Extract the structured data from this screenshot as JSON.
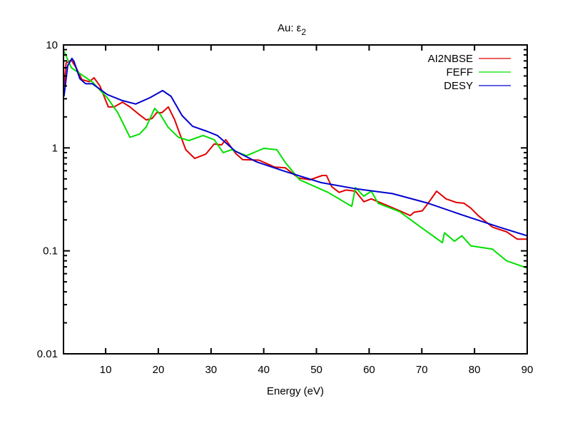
{
  "chart_data": {
    "type": "line",
    "title": "Au: ε",
    "title_subscript": "2",
    "xlabel": "Energy (eV)",
    "ylabel": "",
    "xlim": [
      2,
      90
    ],
    "ylim": [
      0.01,
      10
    ],
    "yscale": "log",
    "grid": false,
    "legend_position": "top-right",
    "xticks": [
      10,
      20,
      30,
      40,
      50,
      60,
      70,
      80,
      90
    ],
    "xtick_labels": [
      "10",
      "20",
      "30",
      "40",
      "50",
      "60",
      "70",
      "80",
      "90"
    ],
    "yticks": [
      0.01,
      0.1,
      1,
      10
    ],
    "ytick_labels": [
      "0.01",
      "0.1",
      "1",
      "10"
    ],
    "series": [
      {
        "name": "AI2NBSE",
        "color": "#e00000",
        "x": [
          2.1,
          2.5,
          3.5,
          4.4,
          5.5,
          6.9,
          7.8,
          8.9,
          10.5,
          11.6,
          13.2,
          14.6,
          16.4,
          17.7,
          18.8,
          19.7,
          20.7,
          21.9,
          23.1,
          24.1,
          25.2,
          26.9,
          29.0,
          30.6,
          32.0,
          32.8,
          34.7,
          36.0,
          39.1,
          42.1,
          44.1,
          46.6,
          48.8,
          51.1,
          51.9,
          52.9,
          54.3,
          55.6,
          57.4,
          59.0,
          60.4,
          63.1,
          65.8,
          67.8,
          68.5,
          70.1,
          71.2,
          72.8,
          74.6,
          76.6,
          78.0,
          79.3,
          80.7,
          83.4,
          86.1,
          88.1,
          90.0
        ],
        "y": [
          4.0,
          6.7,
          7.1,
          6.0,
          4.6,
          4.4,
          4.8,
          4.0,
          2.5,
          2.5,
          2.78,
          2.5,
          2.1,
          1.87,
          1.93,
          2.2,
          2.2,
          2.5,
          1.87,
          1.36,
          0.96,
          0.79,
          0.87,
          1.09,
          1.07,
          1.2,
          0.88,
          0.77,
          0.76,
          0.65,
          0.64,
          0.51,
          0.49,
          0.54,
          0.54,
          0.42,
          0.37,
          0.39,
          0.38,
          0.3,
          0.32,
          0.28,
          0.245,
          0.22,
          0.237,
          0.245,
          0.29,
          0.38,
          0.32,
          0.295,
          0.29,
          0.26,
          0.22,
          0.17,
          0.153,
          0.13,
          0.13
        ]
      },
      {
        "name": "FEFF",
        "color": "#00e000",
        "x": [
          2.1,
          3.5,
          4.8,
          7.5,
          10.3,
          12.3,
          14.6,
          16.4,
          17.7,
          19.3,
          20.4,
          21.8,
          23.8,
          25.8,
          28.5,
          30.6,
          32.3,
          33.9,
          36.7,
          40.0,
          42.5,
          44.1,
          46.8,
          52.2,
          56.7,
          57.4,
          59.0,
          60.4,
          61.7,
          65.8,
          69.8,
          73.9,
          74.3,
          76.2,
          77.6,
          79.3,
          83.4,
          84.3,
          86.1,
          90.0
        ],
        "y": [
          8.66,
          6.0,
          5.4,
          4.36,
          3.07,
          2.2,
          1.27,
          1.36,
          1.6,
          2.42,
          2.1,
          1.6,
          1.27,
          1.18,
          1.32,
          1.2,
          0.9,
          0.96,
          0.84,
          0.99,
          0.96,
          0.72,
          0.49,
          0.37,
          0.27,
          0.41,
          0.34,
          0.38,
          0.29,
          0.24,
          0.17,
          0.12,
          0.15,
          0.124,
          0.14,
          0.112,
          0.104,
          0.095,
          0.08,
          0.068
        ]
      },
      {
        "name": "DESY",
        "color": "#0000d0",
        "x": [
          2.1,
          2.8,
          3.6,
          4.0,
          5.1,
          6.2,
          7.5,
          10.3,
          13.0,
          15.7,
          18.4,
          20.8,
          22.4,
          24.5,
          26.5,
          29.2,
          31.2,
          34.6,
          38.7,
          44.1,
          50.9,
          57.6,
          64.4,
          71.2,
          78.0,
          84.7,
          90.0
        ],
        "y": [
          3.17,
          6.3,
          7.4,
          6.9,
          4.7,
          4.2,
          4.2,
          3.3,
          2.9,
          2.67,
          3.07,
          3.6,
          3.17,
          2.06,
          1.62,
          1.45,
          1.32,
          0.93,
          0.73,
          0.59,
          0.46,
          0.4,
          0.36,
          0.29,
          0.22,
          0.17,
          0.14
        ]
      }
    ]
  }
}
